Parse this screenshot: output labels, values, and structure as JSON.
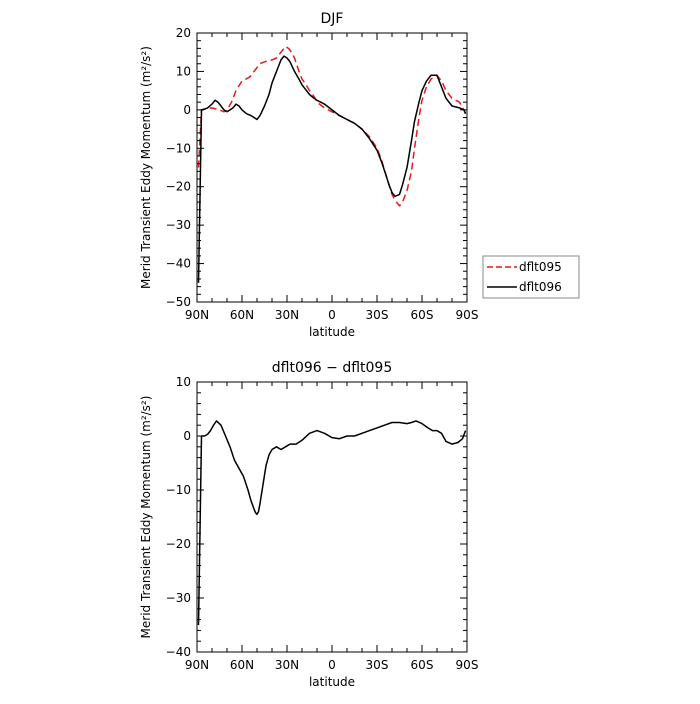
{
  "chart_data": [
    {
      "type": "line",
      "title": "DJF",
      "xlabel": "latitude",
      "ylabel": "Merid Transient Eddy Momentum  (m²/s²)",
      "xlim": [
        90,
        -90
      ],
      "ylim": [
        -50,
        20
      ],
      "x_ticks": [
        90,
        60,
        30,
        0,
        -30,
        -60,
        -90
      ],
      "x_tick_labels": [
        "90N",
        "60N",
        "30N",
        "0",
        "30S",
        "60S",
        "90S"
      ],
      "y_ticks": [
        20,
        10,
        0,
        -10,
        -20,
        -30,
        -40,
        -50
      ],
      "y_tick_labels": [
        "20",
        "10",
        "0",
        "−10",
        "−20",
        "−30",
        "−40",
        "−50"
      ],
      "legend": {
        "placement": "right",
        "entries": [
          "dflt095",
          "dflt096"
        ]
      },
      "series": [
        {
          "name": "dflt095",
          "color": "#e41a1c",
          "dash": "dashed",
          "x": [
            89,
            87,
            85,
            80,
            75,
            72,
            70,
            67,
            64,
            60,
            55,
            52,
            50,
            48,
            45,
            42,
            40,
            37,
            35,
            33,
            31,
            29,
            27,
            25,
            22,
            20,
            18,
            15,
            12,
            10,
            5,
            0,
            -5,
            -10,
            -15,
            -20,
            -25,
            -30,
            -33,
            -36,
            -38,
            -40,
            -42,
            -45,
            -47,
            -50,
            -53,
            -55,
            -58,
            -60,
            -63,
            -66,
            -70,
            -73,
            -76,
            -80,
            -85,
            -88,
            -89
          ],
          "y": [
            -15,
            0,
            0.2,
            0.5,
            0,
            -0.5,
            0,
            2,
            5,
            7.5,
            8.5,
            10,
            11,
            12,
            12.5,
            12.8,
            13,
            13.5,
            14.5,
            15.5,
            16.5,
            16,
            15,
            13.5,
            10,
            8,
            7,
            5,
            3.5,
            2,
            0.5,
            -0.5,
            -1.5,
            -2.5,
            -3.5,
            -5,
            -7,
            -10,
            -13,
            -17,
            -19.5,
            -22,
            -23.5,
            -25,
            -24,
            -21,
            -16,
            -10,
            -2,
            2.5,
            6,
            8,
            9,
            7.5,
            5,
            3,
            2,
            0,
            -1
          ]
        },
        {
          "name": "dflt096",
          "color": "#000000",
          "dash": "solid",
          "x": [
            89,
            87,
            85,
            83,
            80,
            78,
            76,
            74,
            72,
            70,
            68,
            66,
            64,
            62,
            60,
            57,
            54,
            52,
            50,
            48,
            45,
            42,
            40,
            38,
            36,
            34,
            32,
            30,
            28,
            25,
            22,
            20,
            18,
            15,
            12,
            10,
            5,
            0,
            -5,
            -10,
            -15,
            -20,
            -25,
            -30,
            -33,
            -36,
            -38,
            -40,
            -42,
            -45,
            -47,
            -50,
            -53,
            -55,
            -58,
            -60,
            -63,
            -66,
            -70,
            -73,
            -76,
            -80,
            -85,
            -88,
            -89
          ],
          "y": [
            -45,
            0,
            0.2,
            0.5,
            1.5,
            2.5,
            2,
            1,
            0,
            -0.5,
            0,
            0.5,
            1.5,
            1,
            0,
            -1,
            -1.5,
            -2,
            -2.5,
            -1.5,
            1,
            4,
            7,
            9,
            11,
            13,
            14,
            13.5,
            12.5,
            10,
            8,
            6.5,
            5.5,
            4,
            3,
            2.5,
            1.5,
            0,
            -1.5,
            -2.5,
            -3.5,
            -5,
            -7.5,
            -10.5,
            -13.5,
            -17,
            -19.5,
            -21.5,
            -22.5,
            -22,
            -19.5,
            -15,
            -8,
            -3,
            2,
            5,
            7.5,
            9,
            9,
            6,
            3,
            1,
            0.5,
            0,
            -1
          ]
        }
      ]
    },
    {
      "type": "line",
      "title": "dflt096 − dflt095",
      "xlabel": "latitude",
      "ylabel": "Merid Transient Eddy Momentum  (m²/s²)",
      "xlim": [
        90,
        -90
      ],
      "ylim": [
        -40,
        10
      ],
      "x_ticks": [
        90,
        60,
        30,
        0,
        -30,
        -60,
        -90
      ],
      "x_tick_labels": [
        "90N",
        "60N",
        "30N",
        "0",
        "30S",
        "60S",
        "90S"
      ],
      "y_ticks": [
        10,
        0,
        -10,
        -20,
        -30,
        -40
      ],
      "y_tick_labels": [
        "10",
        "0",
        "−10",
        "−20",
        "−30",
        "−40"
      ],
      "series": [
        {
          "color": "#000000",
          "dash": "solid",
          "x": [
            89,
            87,
            85,
            83,
            81,
            79,
            77,
            74,
            71,
            68,
            65,
            62,
            59,
            56,
            54,
            52,
            51,
            50,
            49,
            48,
            46,
            44,
            42,
            40,
            37,
            34,
            31,
            28,
            24,
            20,
            15,
            10,
            5,
            0,
            -5,
            -10,
            -15,
            -20,
            -25,
            -30,
            -35,
            -40,
            -45,
            -50,
            -53,
            -56,
            -60,
            -64,
            -67,
            -70,
            -73,
            -76,
            -80,
            -84,
            -87,
            -89
          ],
          "y": [
            -35,
            0,
            0,
            0.3,
            1,
            2,
            2.8,
            2,
            0,
            -2,
            -4.5,
            -6,
            -7.5,
            -10,
            -12,
            -13.5,
            -14.2,
            -14.5,
            -14,
            -12.5,
            -9,
            -5.5,
            -3.5,
            -2.5,
            -2,
            -2.5,
            -2,
            -1.5,
            -1.5,
            -0.8,
            0.5,
            1,
            0.5,
            -0.3,
            -0.5,
            0,
            0,
            0.5,
            1,
            1.5,
            2,
            2.5,
            2.5,
            2.3,
            2.5,
            2.8,
            2.3,
            1.5,
            1,
            1,
            0.5,
            -1,
            -1.5,
            -1.2,
            -0.5,
            1
          ]
        }
      ]
    }
  ]
}
